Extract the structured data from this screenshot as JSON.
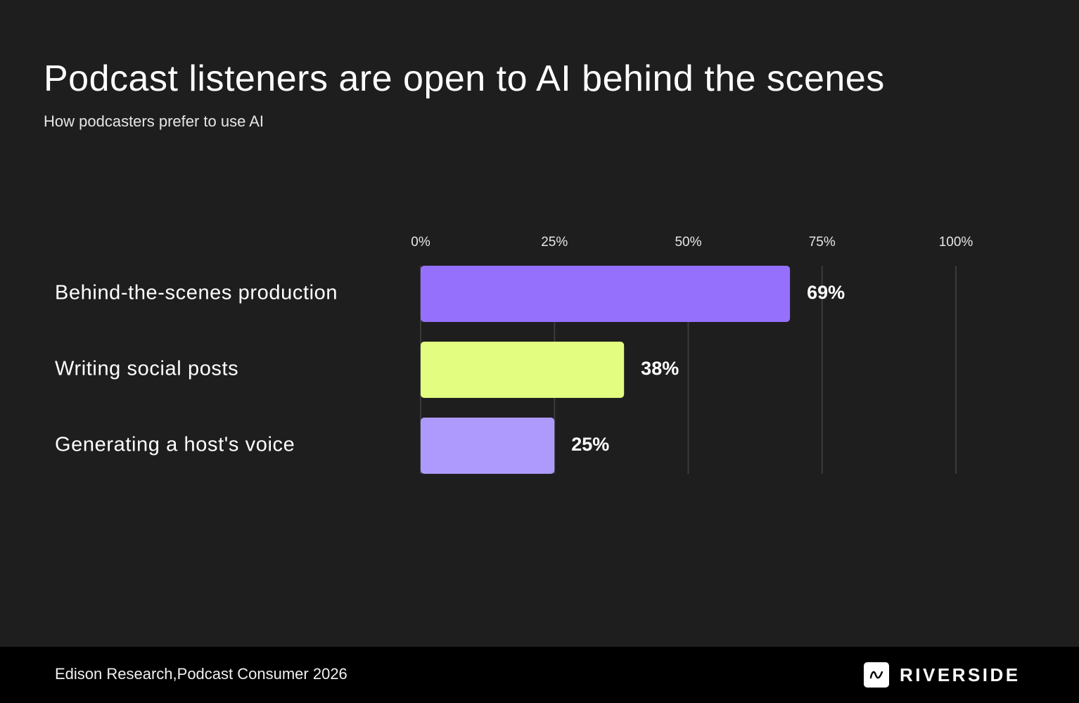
{
  "header": {
    "title": "Podcast listeners are open to AI behind the scenes",
    "subtitle": "How podcasters prefer to use AI"
  },
  "chart_data": {
    "type": "bar",
    "orientation": "horizontal",
    "categories": [
      "Behind-the-scenes production",
      "Writing social posts",
      "Generating a host's voice"
    ],
    "values": [
      69,
      38,
      25
    ],
    "value_labels": [
      "69%",
      "38%",
      "25%"
    ],
    "colors": [
      "#9570fc",
      "#e2fd80",
      "#ae9afd"
    ],
    "xlim": [
      0,
      100
    ],
    "x_ticks": [
      0,
      25,
      50,
      75,
      100
    ],
    "x_tick_labels": [
      "0%",
      "25%",
      "50%",
      "75%",
      "100%"
    ],
    "x_axis_position": "top",
    "grid": true,
    "legend": "none"
  },
  "footer": {
    "source": "Edison Research,Podcast Consumer 2026",
    "brand": "RIVERSIDE",
    "brand_icon": "wave-icon"
  },
  "colors": {
    "background": "#1e1e1e",
    "footer_background": "#000000",
    "gridline": "#3a3a3a",
    "text": "#ffffff"
  }
}
